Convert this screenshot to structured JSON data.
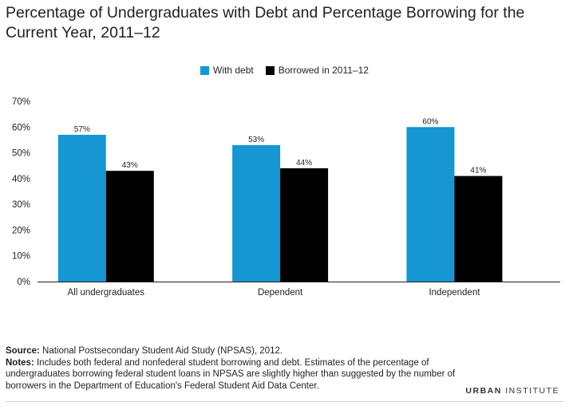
{
  "title": "Percentage of Undergraduates with Debt and Percentage Borrowing for the Current Year, 2011–12",
  "colors": {
    "with_debt": "#1696d2",
    "borrowed": "#000000",
    "axis": "#231f20",
    "grid": "#e6e6e6"
  },
  "footer": {
    "source_label": "Source:",
    "source_text": "National Postsecondary Student Aid Study (NPSAS), 2012.",
    "notes_label": "Notes:",
    "notes_text": "Includes both federal and nonfederal student borrowing and debt. Estimates of the percentage of undergraduates borrowing federal student loans in NPSAS are slightly higher than suggested by the number of borrowers in the Department of Education's Federal Student Aid Data Center.",
    "logo_first": "URBAN",
    "logo_second": "INSTITUTE"
  },
  "chart_data": {
    "type": "bar",
    "categories": [
      "All undergraduates",
      "Dependent",
      "Independent"
    ],
    "series": [
      {
        "name": "With debt",
        "values": [
          57,
          53,
          60
        ],
        "labels": [
          "57%",
          "53%",
          "60%"
        ]
      },
      {
        "name": "Borrowed in 2011–12",
        "values": [
          43,
          44,
          41
        ],
        "labels": [
          "43%",
          "44%",
          "41%"
        ]
      }
    ],
    "yticks": [
      "0%",
      "10%",
      "20%",
      "30%",
      "40%",
      "50%",
      "60%",
      "70%"
    ],
    "ylim": [
      0,
      70
    ],
    "legend_position": "top-center",
    "grid": false
  }
}
